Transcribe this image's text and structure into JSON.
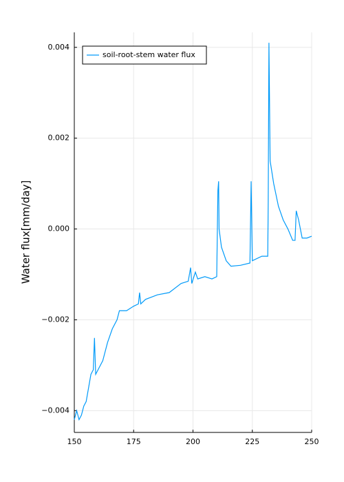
{
  "chart_data": {
    "type": "line",
    "ylabel": "Water flux[mm/day]",
    "x": [
      150,
      151,
      152,
      153,
      154,
      155,
      156,
      157,
      158,
      158.5,
      159,
      160,
      162,
      164,
      166,
      168,
      169,
      172,
      175,
      177,
      177.5,
      178,
      180,
      185,
      190,
      195,
      198,
      199,
      199.5,
      201,
      202,
      205,
      208,
      210,
      210.5,
      210.8,
      211,
      212,
      214,
      216,
      220,
      224,
      224.5,
      225,
      229,
      231.5,
      231.7,
      232,
      232.5,
      234,
      236,
      238,
      240,
      242,
      243,
      243.5,
      244.5,
      246,
      248,
      250
    ],
    "series": [
      {
        "name": "soil-root-stem water flux",
        "color": "#009af9",
        "values": [
          -0.0042,
          -0.004,
          -0.0042,
          -0.0041,
          -0.0039,
          -0.0038,
          -0.0035,
          -0.0032,
          -0.0031,
          -0.0024,
          -0.0032,
          -0.0031,
          -0.0029,
          -0.0025,
          -0.0022,
          -0.002,
          -0.0018,
          -0.0018,
          -0.0017,
          -0.00165,
          -0.0014,
          -0.00165,
          -0.00155,
          -0.00145,
          -0.0014,
          -0.0012,
          -0.00115,
          -0.00085,
          -0.0012,
          -0.00095,
          -0.0011,
          -0.00105,
          -0.0011,
          -0.00105,
          0.00085,
          0.00105,
          0.0,
          -0.0004,
          -0.0007,
          -0.00082,
          -0.0008,
          -0.00075,
          0.00105,
          -0.0007,
          -0.0006,
          -0.0006,
          0.0006,
          0.0041,
          0.0015,
          0.001,
          0.0005,
          0.0002,
          0.0,
          -0.00025,
          -0.00025,
          0.0004,
          0.0002,
          -0.0002,
          -0.0002,
          -0.00016
        ]
      }
    ],
    "xlim": [
      150,
      250
    ],
    "xticks": [
      150,
      175,
      200,
      225,
      250
    ],
    "ylim": [
      -0.00448,
      0.00433
    ],
    "yticks": [
      {
        "value": -0.004,
        "label": "−0.004"
      },
      {
        "value": -0.002,
        "label": "−0.002"
      },
      {
        "value": 0,
        "label": "0.000"
      },
      {
        "value": 0.002,
        "label": "0.002"
      },
      {
        "value": 0.004,
        "label": "0.004"
      }
    ],
    "grid": true,
    "legend": "top left"
  }
}
